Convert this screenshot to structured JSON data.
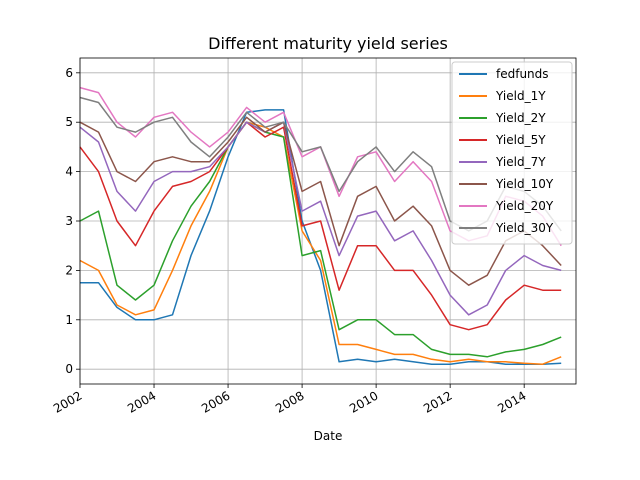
{
  "chart_data": {
    "type": "line",
    "title": "Different maturity yield series",
    "xlabel": "Date",
    "ylabel": "",
    "xlim": [
      2002.0,
      2015.4
    ],
    "ylim": [
      -0.3,
      6.3
    ],
    "x_ticks": [
      2002,
      2004,
      2006,
      2008,
      2010,
      2012,
      2014
    ],
    "x_tick_labels": [
      "2002",
      "2004",
      "2006",
      "2008",
      "2010",
      "2012",
      "2014"
    ],
    "y_ticks": [
      0,
      1,
      2,
      3,
      4,
      5,
      6
    ],
    "y_tick_labels": [
      "0",
      "1",
      "2",
      "3",
      "4",
      "5",
      "6"
    ],
    "grid": true,
    "legend_position": "upper right",
    "x": [
      2002.0,
      2002.5,
      2003.0,
      2003.5,
      2004.0,
      2004.5,
      2005.0,
      2005.5,
      2006.0,
      2006.5,
      2007.0,
      2007.5,
      2008.0,
      2008.5,
      2009.0,
      2009.5,
      2010.0,
      2010.5,
      2011.0,
      2011.5,
      2012.0,
      2012.5,
      2013.0,
      2013.5,
      2014.0,
      2014.5,
      2015.0
    ],
    "series": [
      {
        "name": "fedfunds",
        "color": "#1f77b4",
        "values": [
          1.75,
          1.75,
          1.25,
          1.0,
          1.0,
          1.1,
          2.3,
          3.2,
          4.3,
          5.2,
          5.25,
          5.25,
          3.0,
          2.0,
          0.15,
          0.2,
          0.15,
          0.2,
          0.15,
          0.1,
          0.1,
          0.15,
          0.15,
          0.1,
          0.1,
          0.1,
          0.12
        ]
      },
      {
        "name": "Yield_1Y",
        "color": "#ff7f0e",
        "values": [
          2.2,
          2.0,
          1.3,
          1.1,
          1.2,
          2.0,
          2.9,
          3.6,
          4.5,
          5.0,
          4.9,
          4.7,
          2.8,
          2.2,
          0.5,
          0.5,
          0.4,
          0.3,
          0.3,
          0.2,
          0.15,
          0.2,
          0.15,
          0.15,
          0.12,
          0.1,
          0.25
        ]
      },
      {
        "name": "Yield_2Y",
        "color": "#2ca02c",
        "values": [
          3.0,
          3.2,
          1.7,
          1.4,
          1.7,
          2.6,
          3.3,
          3.8,
          4.5,
          5.0,
          4.8,
          4.7,
          2.3,
          2.4,
          0.8,
          1.0,
          1.0,
          0.7,
          0.7,
          0.4,
          0.3,
          0.3,
          0.25,
          0.35,
          0.4,
          0.5,
          0.65
        ]
      },
      {
        "name": "Yield_5Y",
        "color": "#d62728",
        "values": [
          4.5,
          4.0,
          3.0,
          2.5,
          3.2,
          3.7,
          3.8,
          4.0,
          4.5,
          5.0,
          4.7,
          4.9,
          2.9,
          3.0,
          1.6,
          2.5,
          2.5,
          2.0,
          2.0,
          1.5,
          0.9,
          0.8,
          0.9,
          1.4,
          1.7,
          1.6,
          1.6
        ]
      },
      {
        "name": "Yield_7Y",
        "color": "#9467bd",
        "values": [
          4.9,
          4.6,
          3.6,
          3.2,
          3.8,
          4.0,
          4.0,
          4.1,
          4.5,
          5.0,
          4.8,
          5.0,
          3.2,
          3.4,
          2.3,
          3.1,
          3.2,
          2.6,
          2.8,
          2.2,
          1.5,
          1.1,
          1.3,
          2.0,
          2.3,
          2.1,
          2.0
        ]
      },
      {
        "name": "Yield_10Y",
        "color": "#8c564b",
        "values": [
          5.0,
          4.8,
          4.0,
          3.8,
          4.2,
          4.3,
          4.2,
          4.2,
          4.6,
          5.1,
          4.8,
          5.0,
          3.6,
          3.8,
          2.5,
          3.5,
          3.7,
          3.0,
          3.3,
          2.9,
          2.0,
          1.7,
          1.9,
          2.6,
          2.8,
          2.5,
          2.1
        ]
      },
      {
        "name": "Yield_20Y",
        "color": "#e377c2",
        "values": [
          5.7,
          5.6,
          5.0,
          4.7,
          5.1,
          5.2,
          4.8,
          4.5,
          4.8,
          5.3,
          5.0,
          5.2,
          4.3,
          4.5,
          3.5,
          4.3,
          4.4,
          3.8,
          4.2,
          3.8,
          2.8,
          2.6,
          2.7,
          3.5,
          3.4,
          3.1,
          2.5
        ]
      },
      {
        "name": "Yield_30Y",
        "color": "#7f7f7f",
        "values": [
          5.5,
          5.4,
          4.9,
          4.8,
          5.0,
          5.1,
          4.6,
          4.3,
          4.7,
          5.2,
          4.9,
          5.0,
          4.4,
          4.5,
          3.6,
          4.2,
          4.5,
          4.0,
          4.4,
          4.1,
          3.0,
          2.8,
          3.0,
          3.7,
          3.6,
          3.3,
          2.8
        ]
      }
    ]
  }
}
